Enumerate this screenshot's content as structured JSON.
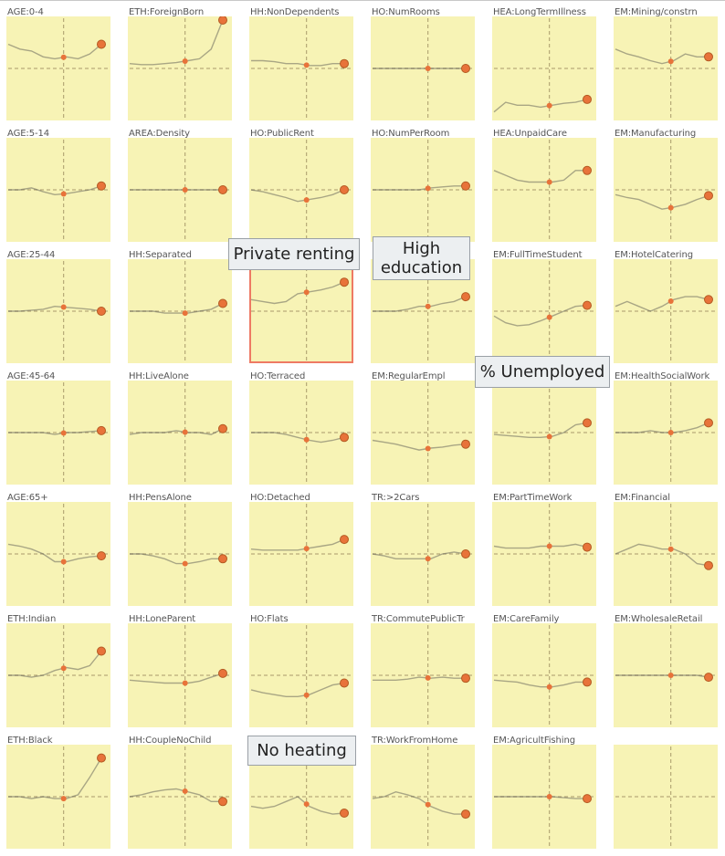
{
  "chart_data": {
    "type": "line",
    "colors": {
      "panel_bg": "#f7f3b5",
      "line": "#4a4a4a",
      "highlight_line": "#6e8f4a",
      "point": "#e8733a",
      "point_stroke": "#b45a22",
      "reference": "#a89a6a",
      "highlight_border": "#ee7a64"
    },
    "panels": [
      {
        "title": "AGE:0-4",
        "values": [
          0.25,
          0.3,
          0.32,
          0.38,
          0.4,
          0.38,
          0.4,
          0.35,
          0.25
        ],
        "highlight": false
      },
      {
        "title": "AGE:5-14",
        "values": [
          0.5,
          0.5,
          0.48,
          0.52,
          0.55,
          0.54,
          0.52,
          0.5,
          0.46
        ],
        "highlight": false
      },
      {
        "title": "AGE:25-44",
        "values": [
          0.5,
          0.5,
          0.49,
          0.48,
          0.45,
          0.46,
          0.47,
          0.48,
          0.5
        ],
        "highlight": false
      },
      {
        "title": "AGE:45-64",
        "values": [
          0.5,
          0.5,
          0.5,
          0.5,
          0.52,
          0.5,
          0.5,
          0.49,
          0.48
        ],
        "highlight": false
      },
      {
        "title": "AGE:65+",
        "values": [
          0.4,
          0.42,
          0.45,
          0.5,
          0.58,
          0.58,
          0.55,
          0.53,
          0.52
        ],
        "highlight": false
      },
      {
        "title": "ETH:Indian",
        "values": [
          0.5,
          0.5,
          0.52,
          0.5,
          0.45,
          0.42,
          0.44,
          0.4,
          0.25
        ],
        "highlight": false
      },
      {
        "title": "ETH:Black",
        "values": [
          0.5,
          0.5,
          0.52,
          0.5,
          0.52,
          0.52,
          0.48,
          0.3,
          0.1
        ],
        "highlight": false
      },
      {
        "title": "ETH:ForeignBorn",
        "values": [
          0.45,
          0.46,
          0.46,
          0.45,
          0.44,
          0.42,
          0.4,
          0.3,
          0.0
        ],
        "highlight": false
      },
      {
        "title": "AREA:Density",
        "values": [
          0.5,
          0.5,
          0.5,
          0.5,
          0.5,
          0.5,
          0.5,
          0.5,
          0.5
        ],
        "highlight": false
      },
      {
        "title": "HH:Separated",
        "values": [
          0.5,
          0.5,
          0.5,
          0.52,
          0.52,
          0.52,
          0.5,
          0.48,
          0.42
        ],
        "highlight": false
      },
      {
        "title": "HH:LiveAlone",
        "values": [
          0.52,
          0.5,
          0.5,
          0.5,
          0.48,
          0.5,
          0.5,
          0.52,
          0.46
        ],
        "highlight": false
      },
      {
        "title": "HH:PensAlone",
        "values": [
          0.5,
          0.5,
          0.52,
          0.55,
          0.6,
          0.6,
          0.58,
          0.55,
          0.55
        ],
        "highlight": false
      },
      {
        "title": "HH:LoneParent",
        "values": [
          0.55,
          0.56,
          0.57,
          0.58,
          0.58,
          0.58,
          0.56,
          0.52,
          0.48
        ],
        "highlight": false
      },
      {
        "title": "HH:CoupleNoChild",
        "values": [
          0.5,
          0.48,
          0.45,
          0.43,
          0.42,
          0.45,
          0.48,
          0.55,
          0.55
        ],
        "highlight": false
      },
      {
        "title": "HH:NonDependents",
        "values": [
          0.42,
          0.42,
          0.43,
          0.45,
          0.45,
          0.47,
          0.47,
          0.45,
          0.45
        ],
        "highlight": false
      },
      {
        "title": "HO:PublicRent",
        "values": [
          0.5,
          0.52,
          0.55,
          0.58,
          0.62,
          0.6,
          0.58,
          0.55,
          0.5
        ],
        "highlight": false
      },
      {
        "title": "Private renting",
        "values": [
          0.38,
          0.4,
          0.42,
          0.4,
          0.32,
          0.3,
          0.28,
          0.25,
          0.2
        ],
        "highlight": true
      },
      {
        "title": "HO:Terraced",
        "values": [
          0.5,
          0.5,
          0.5,
          0.52,
          0.55,
          0.58,
          0.6,
          0.58,
          0.55
        ],
        "highlight": false
      },
      {
        "title": "HO:Detached",
        "values": [
          0.45,
          0.46,
          0.46,
          0.46,
          0.46,
          0.44,
          0.42,
          0.4,
          0.35
        ],
        "highlight": false
      },
      {
        "title": "HO:Flats",
        "values": [
          0.65,
          0.68,
          0.7,
          0.72,
          0.72,
          0.7,
          0.65,
          0.6,
          0.58
        ],
        "highlight": false
      },
      {
        "title": "No heating",
        "values": [
          0.6,
          0.62,
          0.6,
          0.55,
          0.5,
          0.6,
          0.65,
          0.68,
          0.67
        ],
        "highlight": false
      },
      {
        "title": "HO:NumRooms",
        "values": [
          0.5,
          0.5,
          0.5,
          0.5,
          0.5,
          0.5,
          0.5,
          0.5,
          0.5
        ],
        "highlight": false
      },
      {
        "title": "HO:NumPerRoom",
        "values": [
          0.5,
          0.5,
          0.5,
          0.5,
          0.5,
          0.48,
          0.47,
          0.46,
          0.46
        ],
        "highlight": false
      },
      {
        "title": "High education",
        "values": [
          0.5,
          0.5,
          0.5,
          0.48,
          0.45,
          0.45,
          0.42,
          0.4,
          0.35
        ],
        "highlight": false
      },
      {
        "title": "EM:RegularEmpl",
        "values": [
          0.58,
          0.6,
          0.62,
          0.65,
          0.68,
          0.66,
          0.65,
          0.63,
          0.62
        ],
        "highlight": false
      },
      {
        "title": "TR:>2Cars",
        "values": [
          0.5,
          0.52,
          0.55,
          0.55,
          0.55,
          0.55,
          0.5,
          0.48,
          0.5
        ],
        "highlight": false
      },
      {
        "title": "TR:CommutePublicTr",
        "values": [
          0.55,
          0.55,
          0.55,
          0.54,
          0.52,
          0.53,
          0.52,
          0.53,
          0.53
        ],
        "highlight": false
      },
      {
        "title": "TR:WorkFromHome",
        "values": [
          0.52,
          0.5,
          0.45,
          0.48,
          0.52,
          0.6,
          0.65,
          0.68,
          0.68
        ],
        "highlight": false
      },
      {
        "title": "HEA:LongTermIllness",
        "values": [
          0.95,
          0.85,
          0.88,
          0.88,
          0.9,
          0.88,
          0.86,
          0.85,
          0.82
        ],
        "highlight": false
      },
      {
        "title": "HEA:UnpaidCare",
        "values": [
          0.3,
          0.35,
          0.4,
          0.42,
          0.42,
          0.42,
          0.4,
          0.3,
          0.3
        ],
        "highlight": false
      },
      {
        "title": "EM:FullTimeStudent",
        "values": [
          0.55,
          0.62,
          0.65,
          0.64,
          0.6,
          0.55,
          0.5,
          0.45,
          0.44
        ],
        "highlight": false
      },
      {
        "title": "% Unemployed",
        "values": [
          0.52,
          0.53,
          0.54,
          0.55,
          0.55,
          0.54,
          0.5,
          0.42,
          0.4
        ],
        "highlight": false
      },
      {
        "title": "EM:PartTimeWork",
        "values": [
          0.42,
          0.44,
          0.44,
          0.44,
          0.42,
          0.42,
          0.42,
          0.4,
          0.43
        ],
        "highlight": false
      },
      {
        "title": "EM:CareFamily",
        "values": [
          0.55,
          0.56,
          0.57,
          0.6,
          0.62,
          0.62,
          0.6,
          0.57,
          0.57
        ],
        "highlight": false
      },
      {
        "title": "EM:AgricultFishing",
        "values": [
          0.5,
          0.5,
          0.5,
          0.5,
          0.5,
          0.5,
          0.51,
          0.52,
          0.52
        ],
        "highlight": false
      },
      {
        "title": "EM:Mining/constrn",
        "values": [
          0.3,
          0.35,
          0.38,
          0.42,
          0.45,
          0.42,
          0.35,
          0.38,
          0.38
        ],
        "highlight": false
      },
      {
        "title": "EM:Manufacturing",
        "values": [
          0.55,
          0.58,
          0.6,
          0.65,
          0.7,
          0.68,
          0.65,
          0.6,
          0.56
        ],
        "highlight": false
      },
      {
        "title": "EM:HotelCatering",
        "values": [
          0.45,
          0.4,
          0.45,
          0.5,
          0.45,
          0.38,
          0.35,
          0.35,
          0.38
        ],
        "highlight": false
      },
      {
        "title": "EM:HealthSocialWork",
        "values": [
          0.5,
          0.5,
          0.5,
          0.48,
          0.5,
          0.5,
          0.48,
          0.45,
          0.4
        ],
        "highlight": false
      },
      {
        "title": "EM:Financial",
        "values": [
          0.5,
          0.45,
          0.4,
          0.42,
          0.45,
          0.45,
          0.5,
          0.6,
          0.62
        ],
        "highlight": false
      },
      {
        "title": "EM:WholesaleRetail",
        "values": [
          0.5,
          0.5,
          0.5,
          0.5,
          0.5,
          0.5,
          0.5,
          0.5,
          0.52
        ],
        "highlight": false
      },
      {
        "title": "",
        "values": [],
        "highlight": false
      }
    ]
  },
  "callouts": {
    "private_renting": "Private renting",
    "high_education": "High education",
    "unemployed": "% Unemployed",
    "no_heating": "No heating"
  }
}
